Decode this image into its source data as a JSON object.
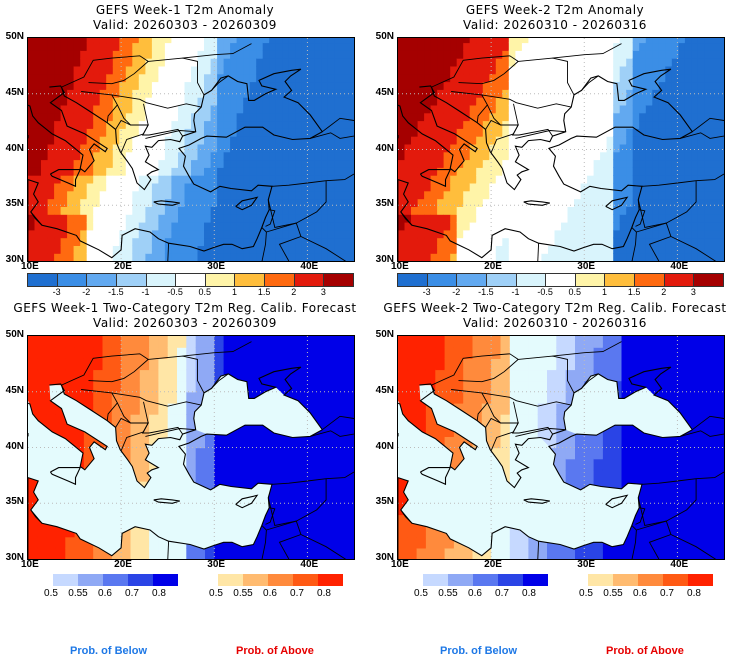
{
  "chart_data": [
    {
      "type": "heatmap",
      "title": "GEFS Week-1 T2m Anomaly",
      "subtitle": "Valid: 20260303 - 20260309",
      "lat_ticks": [
        "50N",
        "45N",
        "40N",
        "35N",
        "30N"
      ],
      "lon_ticks": [
        "10E",
        "20E",
        "30E",
        "40E"
      ],
      "lat_range": [
        30,
        50
      ],
      "lon_range": [
        10,
        45
      ],
      "colorbar": {
        "labels": [
          "-3",
          "-2",
          "-1.5",
          "-1",
          "-0.5",
          "0.5",
          "1",
          "1.5",
          "2",
          "3"
        ],
        "colors": [
          "#1f6fd0",
          "#3b8ee6",
          "#62a9f0",
          "#9fd0f7",
          "#d9f4fc",
          "#ffffff",
          "#fff4a8",
          "#ffbe3c",
          "#ff6a10",
          "#e31a0c",
          "#a50000"
        ]
      },
      "pattern": "warm west (Balkans/Italy strongly above), cold east (Turkey/Caucasus below)"
    },
    {
      "type": "heatmap",
      "title": "GEFS Week-2 T2m Anomaly",
      "subtitle": "Valid: 20260310 - 20260316",
      "lat_ticks": [
        "50N",
        "45N",
        "40N",
        "35N",
        "30N"
      ],
      "lon_ticks": [
        "10E",
        "20E",
        "30E",
        "40E"
      ],
      "lat_range": [
        30,
        50
      ],
      "lon_range": [
        10,
        45
      ],
      "colorbar": {
        "labels": [
          "-3",
          "-2",
          "-1.5",
          "-1",
          "-0.5",
          "0.5",
          "1",
          "1.5",
          "2",
          "3"
        ],
        "colors": [
          "#1f6fd0",
          "#3b8ee6",
          "#62a9f0",
          "#9fd0f7",
          "#d9f4fc",
          "#ffffff",
          "#fff4a8",
          "#ffbe3c",
          "#ff6a10",
          "#e31a0c",
          "#a50000"
        ]
      },
      "pattern": "warm northwest (Balkans), neutral center, cool east"
    },
    {
      "type": "heatmap",
      "title": "GEFS Week-1 Two-Category T2m Reg. Calib. Forecast",
      "subtitle": "Valid: 20260303 - 20260309",
      "lat_ticks": [
        "50N",
        "45N",
        "40N",
        "35N",
        "30N"
      ],
      "lon_ticks": [
        "10E",
        "20E",
        "30E",
        "40E"
      ],
      "lat_range": [
        30,
        50
      ],
      "lon_range": [
        10,
        45
      ],
      "below_colorbar": {
        "labels": [
          "0.5",
          "0.55",
          "0.6",
          "0.7",
          "0.8"
        ],
        "colors": [
          "#c6d9ff",
          "#8fa9f5",
          "#5a78f0",
          "#2a44e6",
          "#0000e8"
        ]
      },
      "above_colorbar": {
        "labels": [
          "0.5",
          "0.55",
          "0.6",
          "0.7",
          "0.8"
        ],
        "colors": [
          "#ffe6a6",
          "#ffbb70",
          "#ff8a3c",
          "#ff5a14",
          "#ff2200"
        ]
      },
      "pattern": "above >0.8 over Balkans/Italy, below >0.8 over Turkey/Caucasus"
    },
    {
      "type": "heatmap",
      "title": "GEFS Week-2 Two-Category T2m Reg. Calib. Forecast",
      "subtitle": "Valid: 20260310 - 20260316",
      "lat_ticks": [
        "50N",
        "45N",
        "40N",
        "35N",
        "30N"
      ],
      "lon_ticks": [
        "10E",
        "20E",
        "30E",
        "40E"
      ],
      "lat_range": [
        30,
        50
      ],
      "lon_range": [
        10,
        45
      ],
      "below_colorbar": {
        "labels": [
          "0.5",
          "0.55",
          "0.6",
          "0.7",
          "0.8"
        ],
        "colors": [
          "#c6d9ff",
          "#8fa9f5",
          "#5a78f0",
          "#2a44e6",
          "#0000e8"
        ]
      },
      "above_colorbar": {
        "labels": [
          "0.5",
          "0.55",
          "0.6",
          "0.7",
          "0.8"
        ],
        "colors": [
          "#ffe6a6",
          "#ffbb70",
          "#ff8a3c",
          "#ff5a14",
          "#ff2200"
        ]
      },
      "pattern": "above over western Balkans/Italy, weaker gradient; below over east"
    }
  ],
  "footer": {
    "below_label": "Prob. of Below",
    "above_label": "Prob. of Above",
    "below_color": "#1e78e6",
    "above_color": "#e60000"
  }
}
